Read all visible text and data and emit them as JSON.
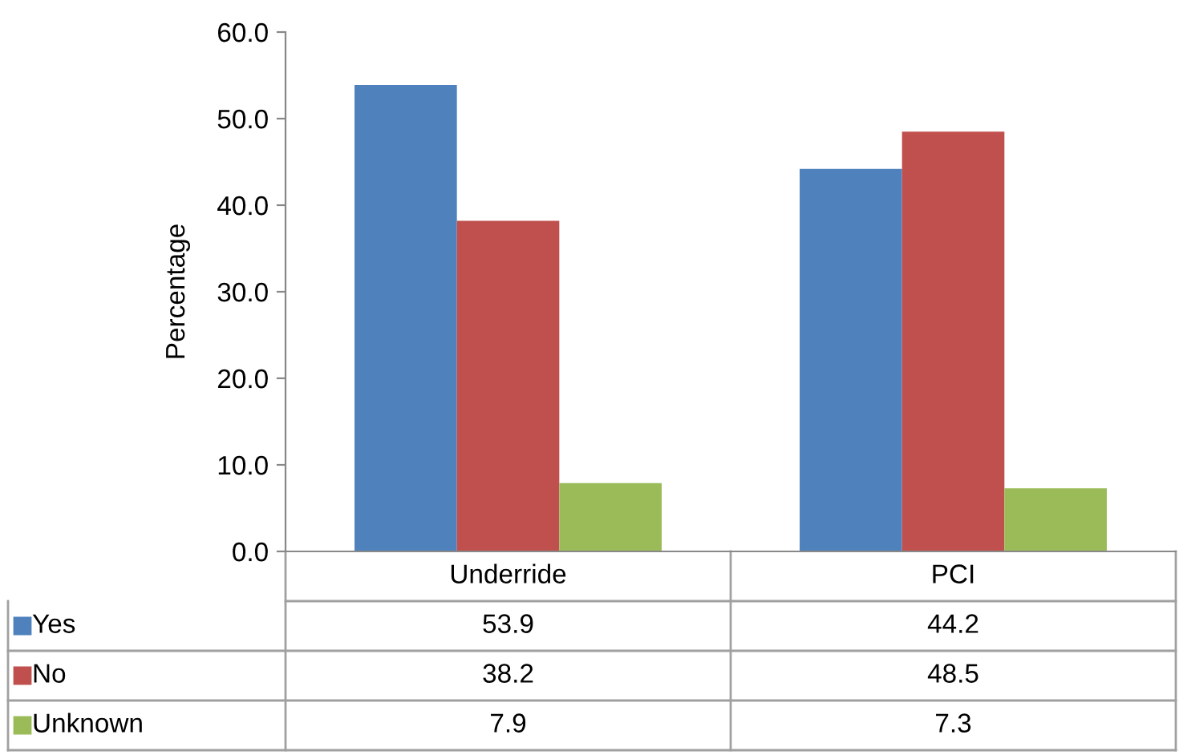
{
  "chart_data": {
    "type": "bar",
    "ylabel": "Percentage",
    "categories": [
      "Underride",
      "PCI"
    ],
    "series": [
      {
        "name": "Yes",
        "color": "#4f81bd",
        "values": [
          53.9,
          44.2
        ]
      },
      {
        "name": "No",
        "color": "#c0504d",
        "values": [
          38.2,
          48.5
        ]
      },
      {
        "name": "Unknown",
        "color": "#9bbb59",
        "values": [
          7.9,
          7.3
        ]
      }
    ],
    "ylim": [
      0,
      60
    ],
    "yticks": [
      {
        "value": 0,
        "label": "0.0"
      },
      {
        "value": 10,
        "label": "10.0"
      },
      {
        "value": 20,
        "label": "20.0"
      },
      {
        "value": 30,
        "label": "30.0"
      },
      {
        "value": 40,
        "label": "40.0"
      },
      {
        "value": 50,
        "label": "50.0"
      },
      {
        "value": 60,
        "label": "60.0"
      }
    ],
    "data_labels": true,
    "grid": false,
    "legend": "bottom"
  }
}
